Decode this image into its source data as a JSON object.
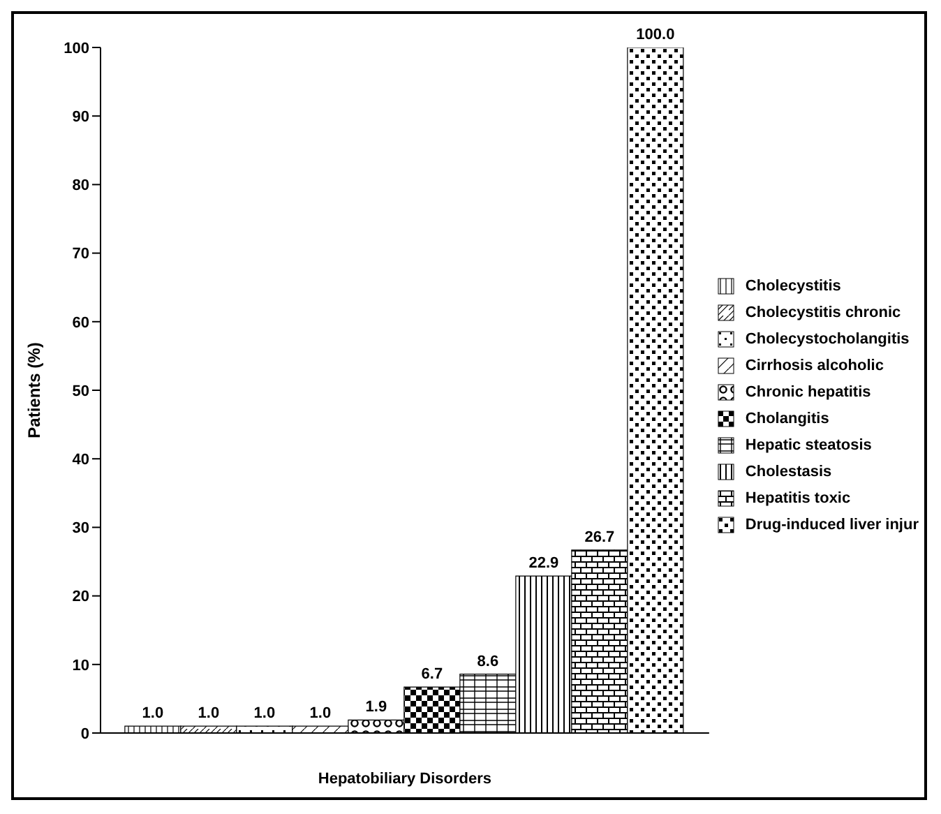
{
  "chart_data": {
    "type": "bar",
    "xlabel": "Hepatobiliary Disorders",
    "ylabel": "Patients (%)",
    "categories": [
      null
    ],
    "series": [
      {
        "name": "Cholecystitis",
        "color": "#000000",
        "values": [
          1.0
        ],
        "value_labels": [
          "1.0"
        ]
      },
      {
        "name": "Cholecystitis chronic",
        "color": "#000000",
        "values": [
          1.0
        ],
        "value_labels": [
          "1.0"
        ]
      },
      {
        "name": "Cholecystocholangitis",
        "color": "#000000",
        "values": [
          1.0
        ],
        "value_labels": [
          "1.0"
        ]
      },
      {
        "name": "Cirrhosis alcoholic",
        "color": "#000000",
        "values": [
          1.0
        ],
        "value_labels": [
          "1.0"
        ]
      },
      {
        "name": "Chronic hepatitis",
        "color": "#000000",
        "values": [
          1.9
        ],
        "value_labels": [
          "1.9"
        ]
      },
      {
        "name": "Cholangitis",
        "color": "#000000",
        "values": [
          6.7
        ],
        "value_labels": [
          "6.7"
        ]
      },
      {
        "name": "Hepatic steatosis",
        "color": "#000000",
        "values": [
          8.6
        ],
        "value_labels": [
          "8.6"
        ]
      },
      {
        "name": "Cholestasis",
        "color": "#000000",
        "values": [
          22.9
        ],
        "value_labels": [
          "22.9"
        ]
      },
      {
        "name": "Hepatitis toxic",
        "color": "#000000",
        "values": [
          26.7
        ],
        "value_labels": [
          "26.7"
        ]
      },
      {
        "name": "Drug-induced liver injur",
        "color": "#000000",
        "values": [
          100.0
        ],
        "value_labels": [
          "100.0"
        ]
      }
    ],
    "ylim": [
      0,
      100
    ],
    "yticks": [
      0,
      10,
      20,
      30,
      40,
      50,
      60,
      70,
      80,
      90,
      100
    ],
    "legend": "right"
  }
}
